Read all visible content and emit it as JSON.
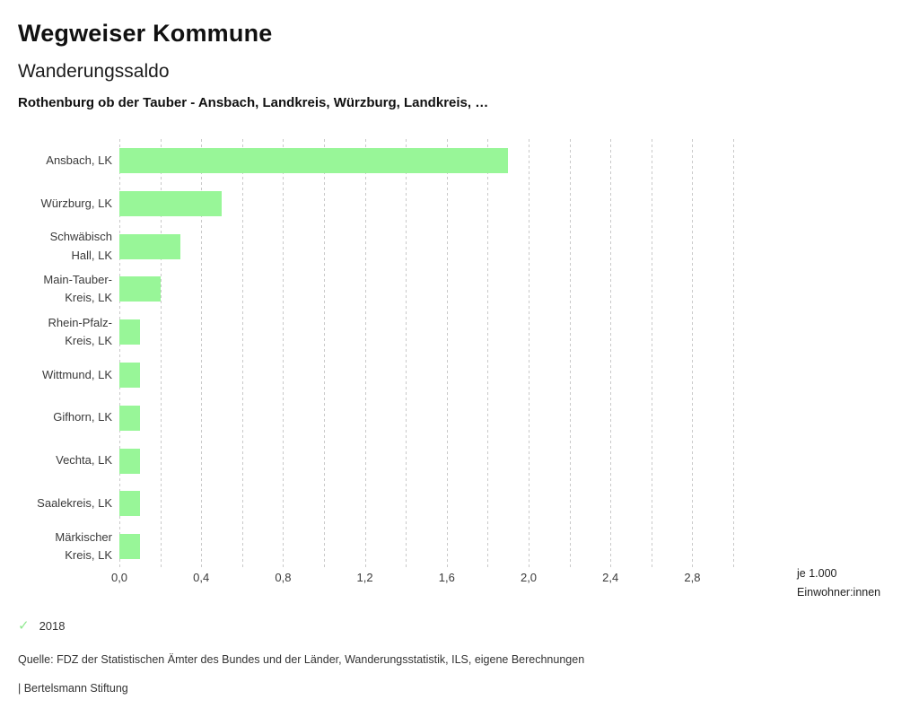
{
  "header": {
    "app_title": "Wegweiser Kommune",
    "chart_title": "Wanderungssaldo",
    "context": "Rothenburg ob der Tauber - Ansbach, Landkreis, Würzburg, Landkreis, …"
  },
  "chart_data": {
    "type": "bar",
    "orientation": "horizontal",
    "title": "Wanderungssaldo",
    "xlabel": "je 1.000 Einwohner:innen",
    "ylabel": "",
    "xlim": [
      0,
      3.0
    ],
    "x_major_tick_step": 0.4,
    "x_minor_tick_step": 0.2,
    "x_tick_labels": [
      "0,0",
      "0,4",
      "0,8",
      "1,2",
      "1,6",
      "2,0",
      "2,4",
      "2,8"
    ],
    "grid": "vertical-dashed",
    "legend_position": "bottom-left",
    "categories": [
      "Ansbach, LK",
      "Würzburg, LK",
      "Schwäbisch Hall, LK",
      "Main-Tauber-Kreis, LK",
      "Rhein-Pfalz-Kreis, LK",
      "Wittmund, LK",
      "Gifhorn, LK",
      "Vechta, LK",
      "Saalekreis, LK",
      "Märkischer Kreis, LK"
    ],
    "category_label_lines": [
      [
        "Ansbach, LK"
      ],
      [
        "Würzburg, LK"
      ],
      [
        "Schwäbisch",
        "Hall, LK"
      ],
      [
        "Main-Tauber-",
        "Kreis, LK"
      ],
      [
        "Rhein-Pfalz-",
        "Kreis, LK"
      ],
      [
        "Wittmund, LK"
      ],
      [
        "Gifhorn, LK"
      ],
      [
        "Vechta, LK"
      ],
      [
        "Saalekreis, LK"
      ],
      [
        "Märkischer",
        "Kreis, LK"
      ]
    ],
    "series": [
      {
        "name": "2018",
        "color": "#98f698",
        "values": [
          1.9,
          0.5,
          0.3,
          0.2,
          0.1,
          0.1,
          0.1,
          0.1,
          0.1,
          0.1
        ]
      }
    ],
    "unit_label_lines": [
      "je 1.000",
      "Einwohner:innen"
    ]
  },
  "legend": {
    "check_icon": "✓",
    "year_label": "2018",
    "check_color": "#8fe98f"
  },
  "footer": {
    "source": "Quelle: FDZ der Statistischen Ämter des Bundes und der Länder, Wanderungsstatistik, ILS, eigene Berechnungen",
    "brand": "| Bertelsmann Stiftung"
  },
  "colors": {
    "bar": "#98f698",
    "grid": "#c9c9c9",
    "text_dark": "#111111",
    "text_mid": "#3a3a3a"
  }
}
